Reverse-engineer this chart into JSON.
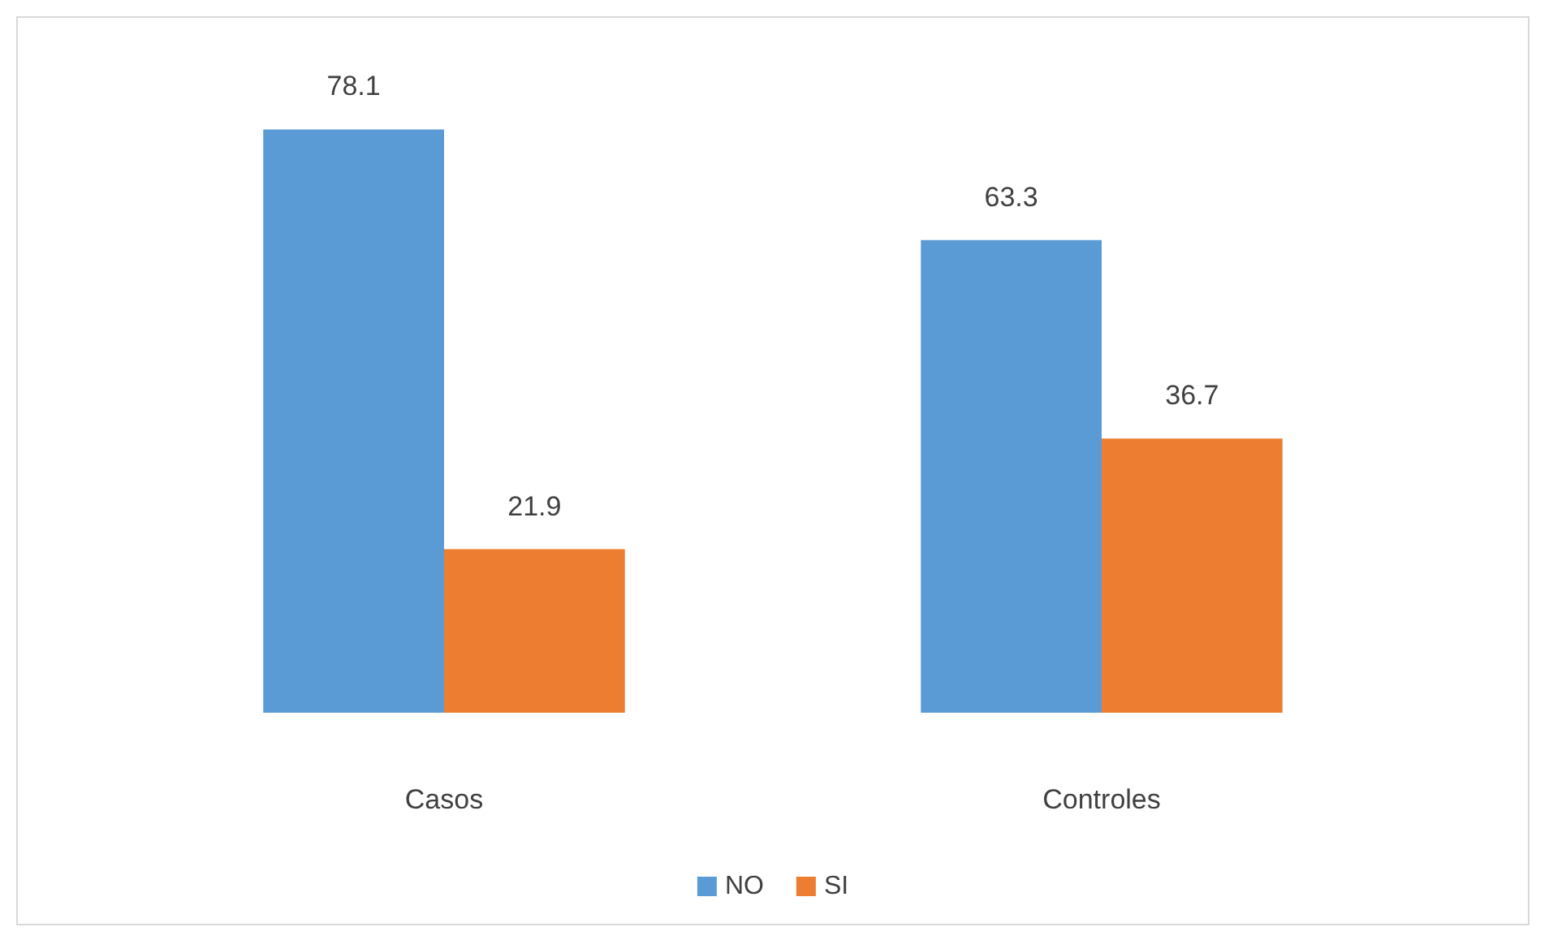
{
  "chart_data": {
    "type": "bar",
    "categories": [
      "Casos",
      "Controles"
    ],
    "series": [
      {
        "name": "NO",
        "color": "#5b9bd5",
        "values": [
          78.1,
          63.3
        ]
      },
      {
        "name": "SI",
        "color": "#ed7d31",
        "values": [
          21.9,
          36.7
        ]
      }
    ],
    "data_labels": true,
    "legend": "bottom"
  }
}
